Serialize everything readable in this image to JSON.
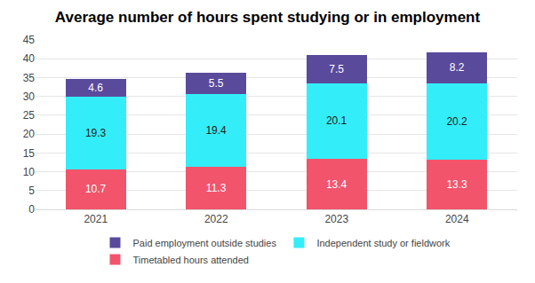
{
  "chart_data": {
    "type": "bar",
    "title": "Average number of hours spent studying or in employment",
    "categories": [
      "2021",
      "2022",
      "2023",
      "2024"
    ],
    "series": [
      {
        "name": "Timetabled hours attended",
        "color": "#f2546c",
        "values": [
          10.7,
          11.3,
          13.4,
          13.3
        ]
      },
      {
        "name": "Independent study or fieldwork",
        "color": "#33eef8",
        "values": [
          19.3,
          19.4,
          20.1,
          20.2
        ]
      },
      {
        "name": "Paid employment outside studies",
        "color": "#5a4a9c",
        "values": [
          4.6,
          5.5,
          7.5,
          8.2
        ]
      }
    ],
    "ylim": [
      0,
      45
    ],
    "yticks": [
      0,
      5,
      10,
      15,
      20,
      25,
      30,
      35,
      40,
      45
    ],
    "stacked": true,
    "data_labels": true,
    "grid": true,
    "legend": "bottom"
  }
}
